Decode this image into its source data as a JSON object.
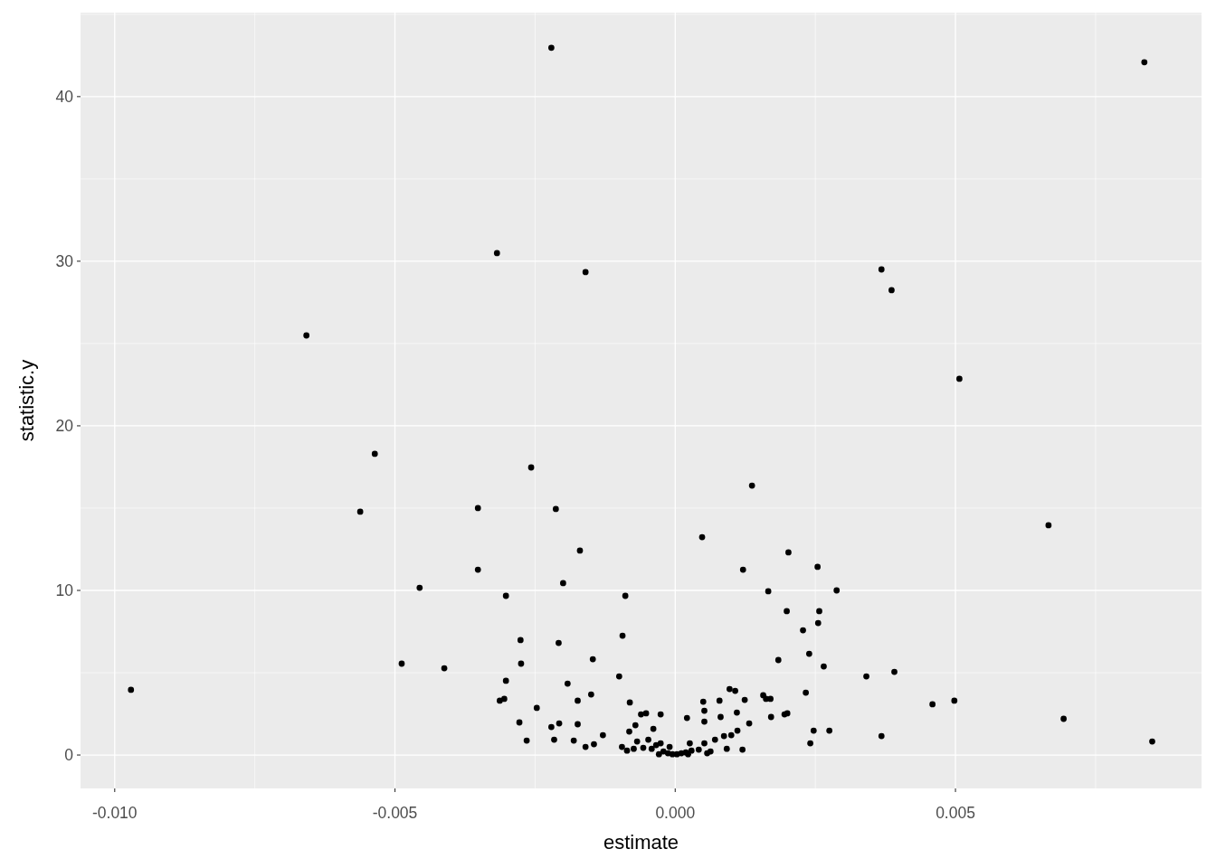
{
  "chart_data": {
    "type": "scatter",
    "xlabel": "estimate",
    "ylabel": "statistic.y",
    "xlim": [
      -0.01061,
      0.00939
    ],
    "ylim": [
      -2.03,
      45.1
    ],
    "xticks": [
      {
        "value": -0.01,
        "label": "-0.010"
      },
      {
        "value": -0.005,
        "label": "-0.005"
      },
      {
        "value": 0,
        "label": "0.000"
      },
      {
        "value": 0.005,
        "label": "0.005"
      }
    ],
    "yticks": [
      0,
      10,
      20,
      30,
      40
    ],
    "grid": true,
    "marker": "circle",
    "series": [
      {
        "color": "#000000",
        "x": [
          -0.00971,
          -0.00221,
          0.00837,
          -0.00318,
          -0.0016,
          0.00368,
          0.00386,
          -0.00658,
          0.00507,
          -0.00536,
          -0.00257,
          0.00137,
          -0.00562,
          -0.00352,
          -0.00213,
          0.00666,
          0.00048,
          -0.0017,
          0.00202,
          -0.00352,
          0.00121,
          0.00254,
          -0.002,
          -0.00456,
          0.00166,
          0.00288,
          -0.00302,
          -0.00089,
          0.00199,
          0.00257,
          0.00255,
          0.00228,
          -0.00094,
          -0.00276,
          -0.00208,
          0.00239,
          -0.00147,
          0.00184,
          -0.00488,
          -0.00275,
          0.00265,
          -0.00412,
          0.00391,
          0.00341,
          -0.001,
          -0.00302,
          -0.00192,
          0.00097,
          0.00107,
          -0.0015,
          0.00233,
          0.00157,
          0.00162,
          0.0017,
          -0.00305,
          -0.00313,
          -0.00174,
          0.0005,
          -0.00081,
          0.00124,
          0.00498,
          0.00459,
          -0.00247,
          0.00052,
          0.00693,
          -0.00278,
          -0.00207,
          -0.00221,
          -0.00174,
          -0.00129,
          -0.00082,
          -0.00071,
          -0.00061,
          -0.00052,
          -0.00026,
          0.00021,
          0.00052,
          0.00081,
          0.0011,
          0.00132,
          0.00079,
          0.00171,
          0.00195,
          0.002,
          0.00247,
          0.00275,
          0.00368,
          -0.00039,
          -0.00265,
          -0.00216,
          -0.00181,
          -0.0016,
          -0.00145,
          -0.00095,
          -0.00068,
          -0.00048,
          -0.00026,
          -0.0001,
          0.00026,
          0.00052,
          0.00071,
          0.00087,
          0.001,
          0.00111,
          0.0012,
          0.00092,
          0.00241,
          0.00851,
          -0.00086,
          -0.00074,
          -0.00057,
          -0.00042,
          -0.00034,
          -0.00021,
          -0.00013,
          -5e-05,
          3e-05,
          0.00011,
          0.00019,
          0.00029,
          0.00042,
          0.00057,
          0.00063,
          -0.00029,
          0.00023
        ],
        "values": [
          3.96,
          42.97,
          42.09,
          30.49,
          29.34,
          29.5,
          28.24,
          25.49,
          22.86,
          18.3,
          17.47,
          16.37,
          14.78,
          15.0,
          14.95,
          13.96,
          13.24,
          12.42,
          12.31,
          11.26,
          11.26,
          11.43,
          10.44,
          10.16,
          9.95,
          10.0,
          9.67,
          9.67,
          8.74,
          8.74,
          8.02,
          7.58,
          7.25,
          6.98,
          6.81,
          6.15,
          5.82,
          5.77,
          5.55,
          5.55,
          5.38,
          5.27,
          5.05,
          4.78,
          4.78,
          4.51,
          4.34,
          4.01,
          3.9,
          3.68,
          3.79,
          3.63,
          3.41,
          3.41,
          3.41,
          3.3,
          3.3,
          3.24,
          3.19,
          3.35,
          3.3,
          3.08,
          2.86,
          2.69,
          2.2,
          1.98,
          1.92,
          1.7,
          1.87,
          1.21,
          1.43,
          1.81,
          2.47,
          2.53,
          2.47,
          2.25,
          2.03,
          2.31,
          2.58,
          1.92,
          3.3,
          2.31,
          2.47,
          2.53,
          1.48,
          1.48,
          1.15,
          1.59,
          0.88,
          0.93,
          0.88,
          0.49,
          0.66,
          0.49,
          0.82,
          0.93,
          0.71,
          0.49,
          0.71,
          0.71,
          0.93,
          1.15,
          1.21,
          1.48,
          0.33,
          0.38,
          0.71,
          0.82,
          0.27,
          0.38,
          0.44,
          0.38,
          0.6,
          0.22,
          0.11,
          0.05,
          0.05,
          0.11,
          0.16,
          0.27,
          0.33,
          0.11,
          0.22,
          0.05,
          0.05
        ]
      }
    ]
  }
}
